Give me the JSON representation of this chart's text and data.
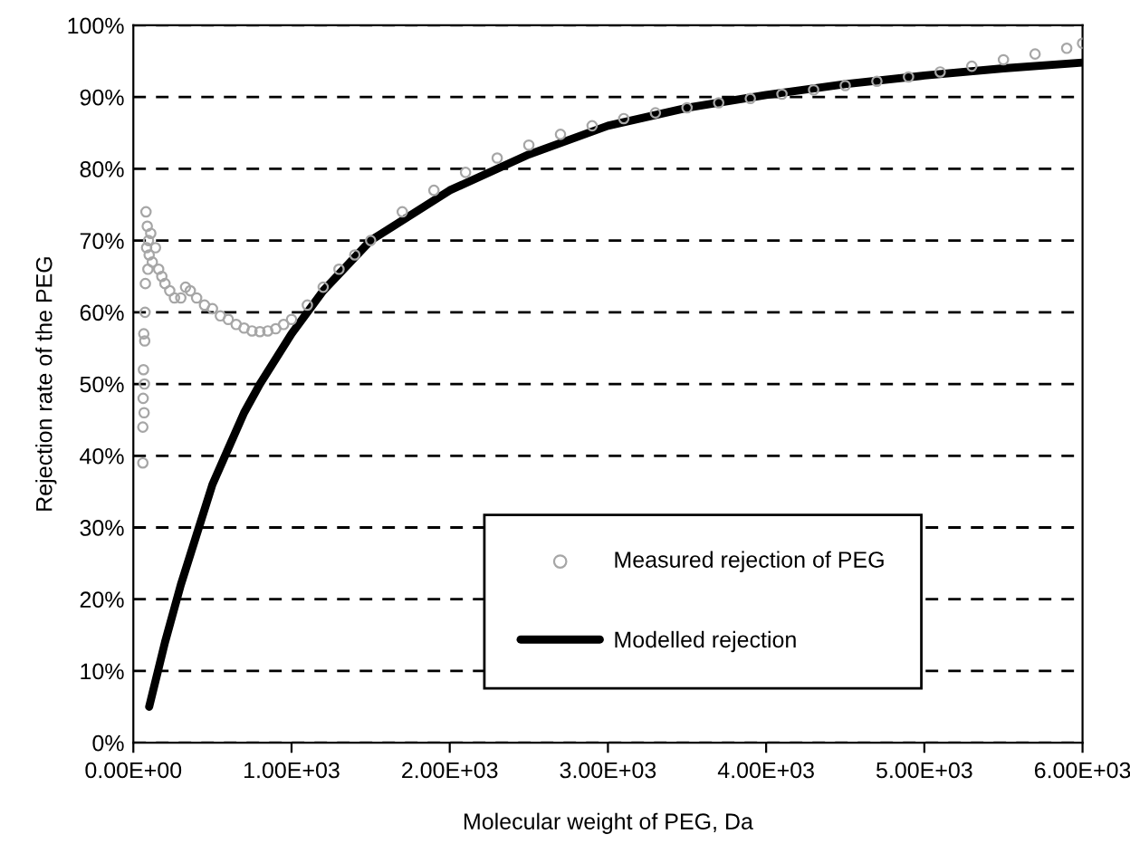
{
  "chart_data": {
    "type": "line",
    "xlabel": "Molecular weight of PEG, Da",
    "ylabel": "Rejection rate of the PEG",
    "xlim": [
      0,
      6000
    ],
    "ylim": [
      0,
      100
    ],
    "xticks": [
      {
        "value": 0,
        "label": "0.00E+00"
      },
      {
        "value": 1000,
        "label": "1.00E+03"
      },
      {
        "value": 2000,
        "label": "2.00E+03"
      },
      {
        "value": 3000,
        "label": "3.00E+03"
      },
      {
        "value": 4000,
        "label": "4.00E+03"
      },
      {
        "value": 5000,
        "label": "5.00E+03"
      },
      {
        "value": 6000,
        "label": "6.00E+03"
      }
    ],
    "yticks": [
      {
        "value": 0,
        "label": "0%"
      },
      {
        "value": 10,
        "label": "10%"
      },
      {
        "value": 20,
        "label": "20%"
      },
      {
        "value": 30,
        "label": "30%"
      },
      {
        "value": 40,
        "label": "40%"
      },
      {
        "value": 50,
        "label": "50%"
      },
      {
        "value": 60,
        "label": "60%"
      },
      {
        "value": 70,
        "label": "70%"
      },
      {
        "value": 80,
        "label": "80%"
      },
      {
        "value": 90,
        "label": "90%"
      },
      {
        "value": 100,
        "label": "100%"
      }
    ],
    "grid": "y",
    "legend": "bottom",
    "series": [
      {
        "name": "Measured rejection of PEG",
        "type": "scatter",
        "marker": "circle",
        "color": "#a6a6a6",
        "x": [
          60,
          60,
          62,
          64,
          66,
          68,
          70,
          72,
          74,
          76,
          80,
          84,
          88,
          92,
          96,
          100,
          110,
          120,
          140,
          160,
          180,
          200,
          230,
          260,
          300,
          330,
          360,
          400,
          450,
          500,
          550,
          600,
          650,
          700,
          750,
          800,
          850,
          900,
          950,
          1000,
          1100,
          1200,
          1300,
          1400,
          1500,
          1700,
          1900,
          2100,
          2300,
          2500,
          2700,
          2900,
          3100,
          3300,
          3500,
          3700,
          3900,
          4100,
          4300,
          4500,
          4700,
          4900,
          5100,
          5300,
          5500,
          5700,
          5900,
          6000
        ],
        "values": [
          39,
          44,
          48,
          52,
          57,
          46,
          50,
          56,
          60,
          64,
          74,
          69,
          72,
          66,
          70,
          68,
          71,
          67,
          69,
          66,
          65,
          64,
          63,
          62,
          62,
          63.5,
          63,
          62,
          61,
          60.5,
          59.5,
          59,
          58.3,
          57.8,
          57.4,
          57.3,
          57.4,
          57.7,
          58.3,
          59,
          61,
          63.5,
          66,
          68,
          70,
          74,
          77,
          79.5,
          81.5,
          83.3,
          84.8,
          86,
          87,
          87.8,
          88.5,
          89.2,
          89.8,
          90.4,
          91,
          91.6,
          92.2,
          92.8,
          93.5,
          94.3,
          95.2,
          96,
          96.8,
          97.5
        ]
      },
      {
        "name": "Modelled rejection",
        "marker": "none",
        "line_style": "solid",
        "color": "#000000",
        "x": [
          100,
          200,
          300,
          400,
          500,
          600,
          700,
          800,
          1000,
          1200,
          1500,
          2000,
          2500,
          3000,
          3500,
          4000,
          4500,
          5000,
          5500,
          6000
        ],
        "values": [
          5,
          14,
          22,
          29,
          36,
          41,
          46,
          50,
          57,
          63,
          70,
          77,
          82,
          86,
          88.5,
          90.3,
          91.8,
          93,
          94,
          94.8
        ]
      }
    ]
  }
}
